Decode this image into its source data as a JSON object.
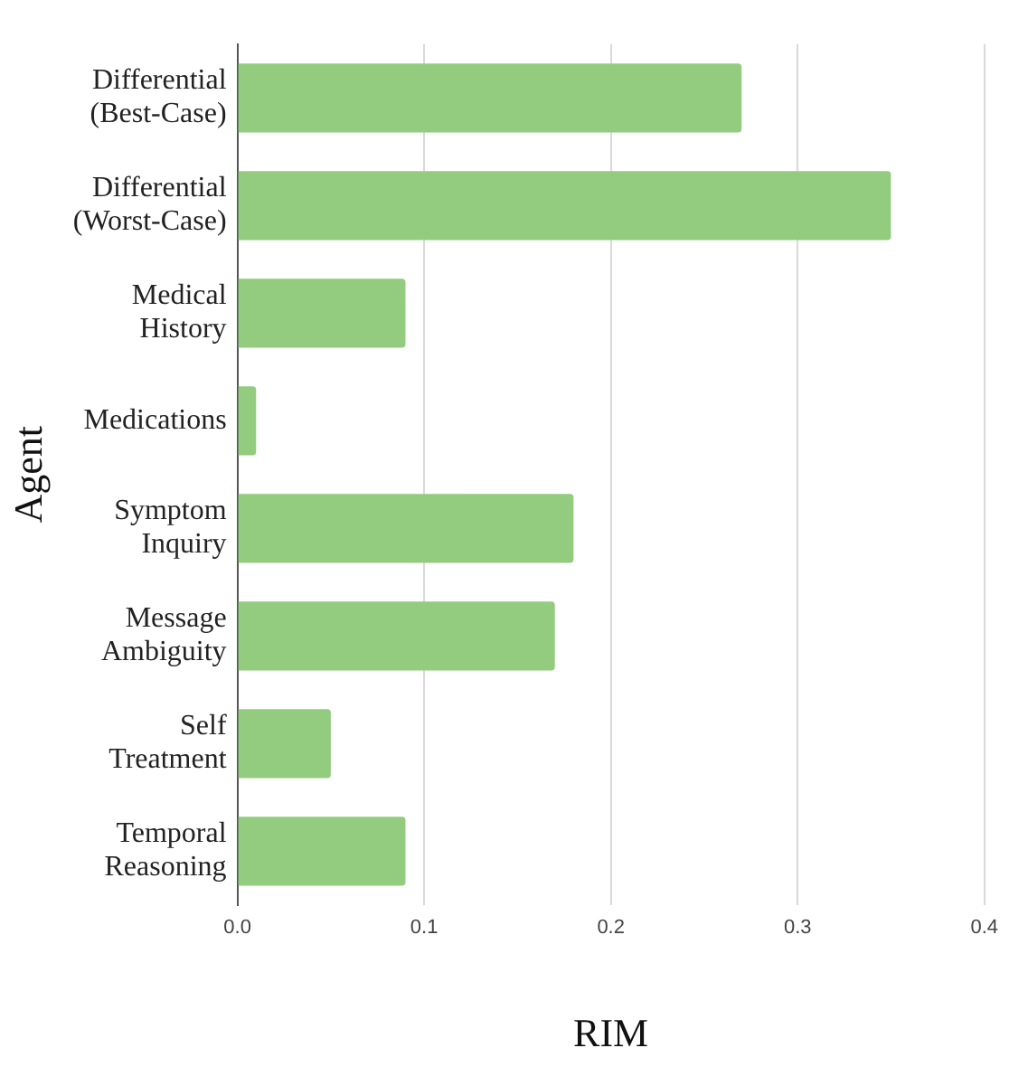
{
  "chart_data": {
    "type": "bar",
    "orientation": "horizontal",
    "xlabel": "RIM",
    "ylabel": "Agent",
    "categories": [
      "Differential (Best-Case)",
      "Differential (Worst-Case)",
      "Medical History",
      "Medications",
      "Symptom Inquiry",
      "Message Ambiguity",
      "Self Treatment",
      "Temporal Reasoning"
    ],
    "values": [
      0.27,
      0.35,
      0.09,
      0.01,
      0.18,
      0.17,
      0.05,
      0.09
    ],
    "color": "#93cb7f",
    "xlim": [
      0,
      0.4
    ],
    "xticks": [
      {
        "value": 0,
        "label": "0.0"
      },
      {
        "value": 0.1,
        "label": "0.1"
      },
      {
        "value": 0.2,
        "label": "0.2"
      },
      {
        "value": 0.3,
        "label": "0.3"
      },
      {
        "value": 0.4,
        "label": "0.4"
      }
    ],
    "grid": "x"
  }
}
